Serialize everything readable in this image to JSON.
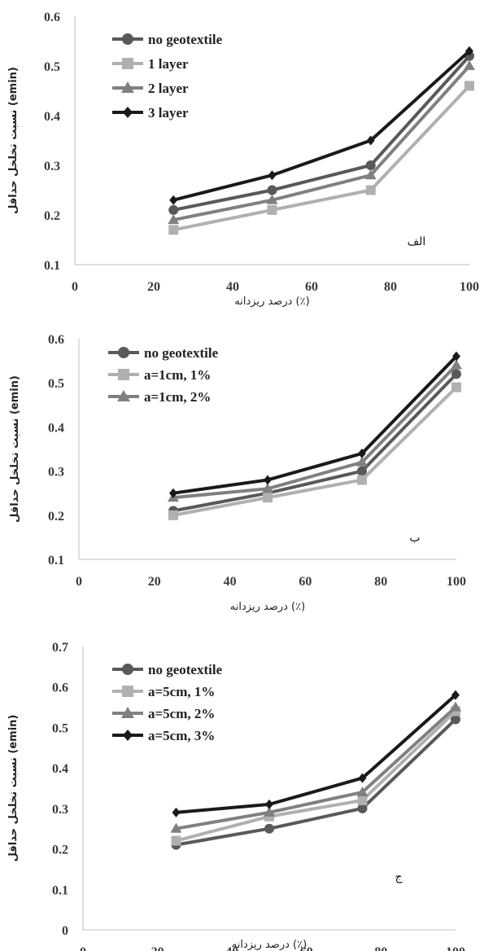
{
  "chart_data": [
    {
      "type": "line",
      "x": [
        25,
        50,
        75,
        100
      ],
      "xlim": [
        0,
        100
      ],
      "xticks": [
        0,
        20,
        40,
        60,
        80,
        100
      ],
      "ylim": [
        0.1,
        0.6
      ],
      "yticks": [
        0.1,
        0.2,
        0.3,
        0.4,
        0.5,
        0.6
      ],
      "xlabel": "درصد ریزدانه (٪)",
      "ylabel": "نسبت تخلخل حداقل (emin)",
      "annotation": "الف",
      "legend_position": "top-left",
      "grid": false,
      "series": [
        {
          "name": "no geotextile",
          "values": [
            0.21,
            0.25,
            0.3,
            0.52
          ],
          "color": "#595959",
          "marker": "circle"
        },
        {
          "name": "1 layer",
          "values": [
            0.17,
            0.21,
            0.25,
            0.46
          ],
          "color": "#b0b0b0",
          "marker": "square"
        },
        {
          "name": "2 layer",
          "values": [
            0.19,
            0.23,
            0.28,
            0.5
          ],
          "color": "#808080",
          "marker": "triangle"
        },
        {
          "name": "3 layer",
          "values": [
            0.23,
            0.28,
            0.35,
            0.53
          ],
          "color": "#1a1a1a",
          "marker": "diamond"
        }
      ]
    },
    {
      "type": "line",
      "x": [
        25,
        50,
        75,
        100
      ],
      "xlim": [
        0,
        100
      ],
      "xticks": [
        0,
        20,
        40,
        60,
        80,
        100
      ],
      "ylim": [
        0.1,
        0.6
      ],
      "yticks": [
        0.1,
        0.2,
        0.3,
        0.4,
        0.5,
        0.6
      ],
      "xlabel": "درصد ریزدانه (٪)",
      "ylabel": "نسبت تخلخل حداقل (emin)",
      "annotation": "ب",
      "legend_position": "top-left",
      "grid": false,
      "series": [
        {
          "name": "no geotextile",
          "values": [
            0.21,
            0.25,
            0.3,
            0.52
          ],
          "color": "#595959",
          "marker": "circle"
        },
        {
          "name": "a=1cm, 1%",
          "values": [
            0.2,
            0.24,
            0.28,
            0.49
          ],
          "color": "#b0b0b0",
          "marker": "square"
        },
        {
          "name": "a=1cm, 2%",
          "values": [
            0.24,
            0.26,
            0.32,
            0.54
          ],
          "color": "#808080",
          "marker": "triangle"
        },
        {
          "name": "",
          "values": [
            0.25,
            0.28,
            0.34,
            0.56
          ],
          "color": "#1a1a1a",
          "marker": "diamond"
        }
      ]
    },
    {
      "type": "line",
      "x": [
        25,
        50,
        75,
        100
      ],
      "xlim": [
        0,
        100
      ],
      "xticks": [
        0,
        20,
        40,
        60,
        80,
        100
      ],
      "ylim": [
        0,
        0.7
      ],
      "yticks": [
        0,
        0.1,
        0.2,
        0.3,
        0.4,
        0.5,
        0.6,
        0.7
      ],
      "xlabel": "درصد ریزدانه (٪)",
      "ylabel": "نسبت تخلخل حداقل (emin)",
      "annotation": "ج",
      "legend_position": "top-left",
      "grid": false,
      "series": [
        {
          "name": "no geotextile",
          "values": [
            0.21,
            0.25,
            0.3,
            0.52
          ],
          "color": "#595959",
          "marker": "circle"
        },
        {
          "name": "a=5cm, 1%",
          "values": [
            0.22,
            0.28,
            0.32,
            0.54
          ],
          "color": "#b0b0b0",
          "marker": "square"
        },
        {
          "name": "a=5cm, 2%",
          "values": [
            0.25,
            0.29,
            0.34,
            0.55
          ],
          "color": "#808080",
          "marker": "triangle"
        },
        {
          "name": "a=5cm, 3%",
          "values": [
            0.29,
            0.31,
            0.375,
            0.58
          ],
          "color": "#1a1a1a",
          "marker": "diamond"
        }
      ]
    }
  ]
}
